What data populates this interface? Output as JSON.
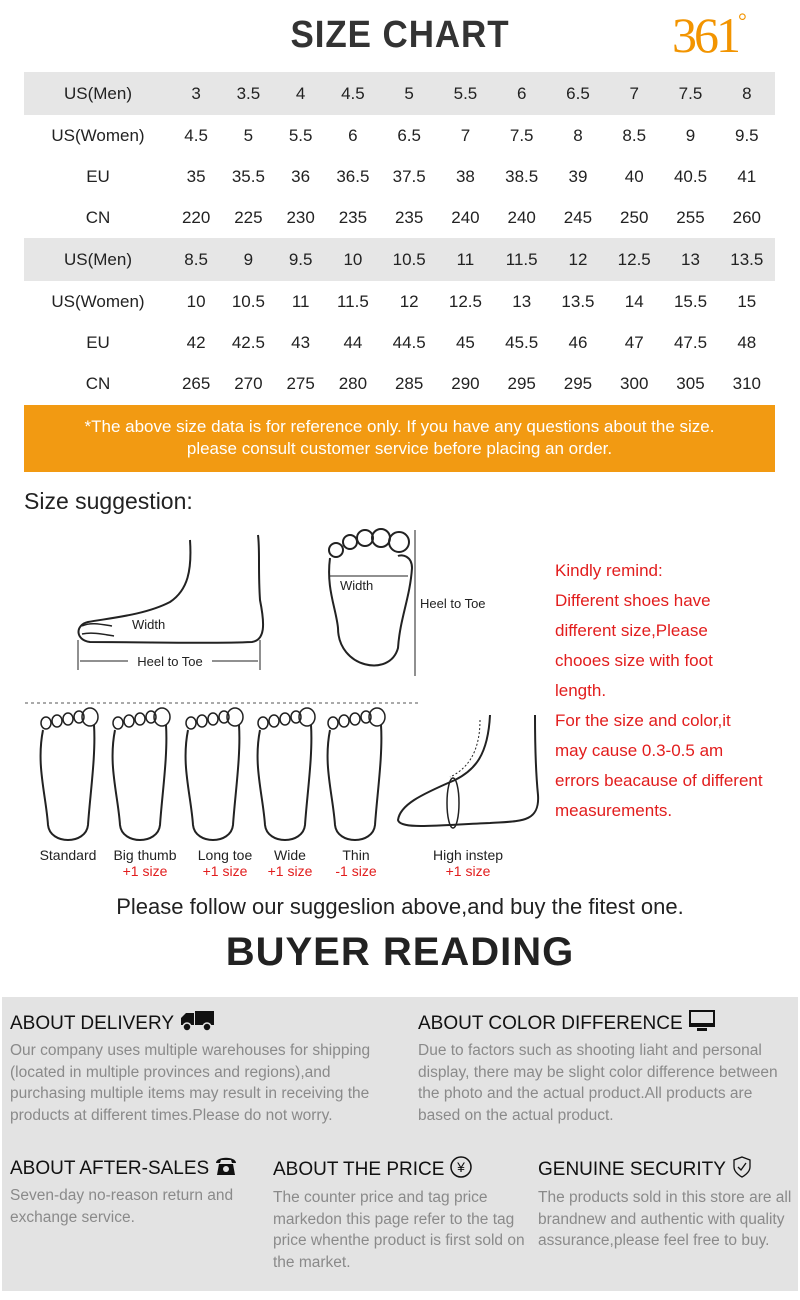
{
  "header": {
    "title": "SIZE CHART",
    "logo": "361",
    "logo_deg": "°"
  },
  "size_table": {
    "rows": [
      {
        "label": "US(Men)",
        "values": [
          "3",
          "3.5",
          "4",
          "4.5",
          "5",
          "5.5",
          "6",
          "6.5",
          "7",
          "7.5",
          "8"
        ],
        "shaded": true
      },
      {
        "label": "US(Women)",
        "values": [
          "4.5",
          "5",
          "5.5",
          "6",
          "6.5",
          "7",
          "7.5",
          "8",
          "8.5",
          "9",
          "9.5"
        ]
      },
      {
        "label": "EU",
        "values": [
          "35",
          "35.5",
          "36",
          "36.5",
          "37.5",
          "38",
          "38.5",
          "39",
          "40",
          "40.5",
          "41"
        ]
      },
      {
        "label": "CN",
        "values": [
          "220",
          "225",
          "230",
          "235",
          "235",
          "240",
          "240",
          "245",
          "250",
          "255",
          "260"
        ]
      },
      {
        "label": "US(Men)",
        "values": [
          "8.5",
          "9",
          "9.5",
          "10",
          "10.5",
          "11",
          "11.5",
          "12",
          "12.5",
          "13",
          "13.5"
        ],
        "shaded": true
      },
      {
        "label": "US(Women)",
        "values": [
          "10",
          "10.5",
          "11",
          "11.5",
          "12",
          "12.5",
          "13",
          "13.5",
          "14",
          "15.5",
          "15"
        ]
      },
      {
        "label": "EU",
        "values": [
          "42",
          "42.5",
          "43",
          "44",
          "44.5",
          "45",
          "45.5",
          "46",
          "47",
          "47.5",
          "48"
        ]
      },
      {
        "label": "CN",
        "values": [
          "265",
          "270",
          "275",
          "280",
          "285",
          "290",
          "295",
          "295",
          "300",
          "305",
          "310"
        ]
      }
    ]
  },
  "notice": {
    "line1": "*The above size data is for reference only. If you have any questions about the size.",
    "line2": "please consult customer service before placing an order.",
    "color": "#f29a12"
  },
  "suggestion": {
    "title": "Size suggestion:",
    "diagram_labels": {
      "width_side": "Width",
      "heel_to_toe_side": "Heel to Toe",
      "width_top": "Width",
      "heel_to_toe_top": "Heel to Toe"
    },
    "remind": [
      "Kindly remind:",
      "Different shoes have",
      "different size,Please",
      "chooes size with foot",
      "length.",
      "For the size and color,it",
      "may cause 0.3-0.5 am",
      "errors beacause of different",
      "measurements."
    ],
    "foot_types": [
      {
        "name": "Standard",
        "adjust": ""
      },
      {
        "name": "Big thumb",
        "adjust": "+1 size"
      },
      {
        "name": "Long toe",
        "adjust": "+1 size"
      },
      {
        "name": "Wide",
        "adjust": "+1 size"
      },
      {
        "name": "Thin",
        "adjust": "-1 size"
      },
      {
        "name": "High instep",
        "adjust": "+1 size"
      }
    ],
    "follow": "Please follow our suggeslion above,and buy the fitest one."
  },
  "buyer": {
    "title": "BUYER READING",
    "sections": [
      {
        "title": "ABOUT DELIVERY",
        "icon": "truck-icon",
        "text": "Our company uses multiple warehouses for shipping (located in multiple provinces and regions),and purchasing multiple items may result in receiving the products at different times.Please do not worry."
      },
      {
        "title": "ABOUT COLOR DIFFERENCE",
        "icon": "monitor-icon",
        "text": "Due to factors such as shooting liaht and personal display, there may be slight color difference between the photo and the actual product.All products are based on the actual product."
      },
      {
        "title": "ABOUT AFTER-SALES",
        "icon": "telephone-icon",
        "text": "Seven-day no-reason return and exchange service."
      },
      {
        "title": "ABOUT THE PRICE",
        "icon": "yen-icon",
        "text": "The counter price and tag price markedon this page refer to the tag price whenthe product is first sold on the market."
      },
      {
        "title": "GENUINE SECURITY",
        "icon": "shield-check-icon",
        "text": "The products sold in this store are all brandnew and authentic with quality assurance,please feel free to buy."
      }
    ]
  }
}
